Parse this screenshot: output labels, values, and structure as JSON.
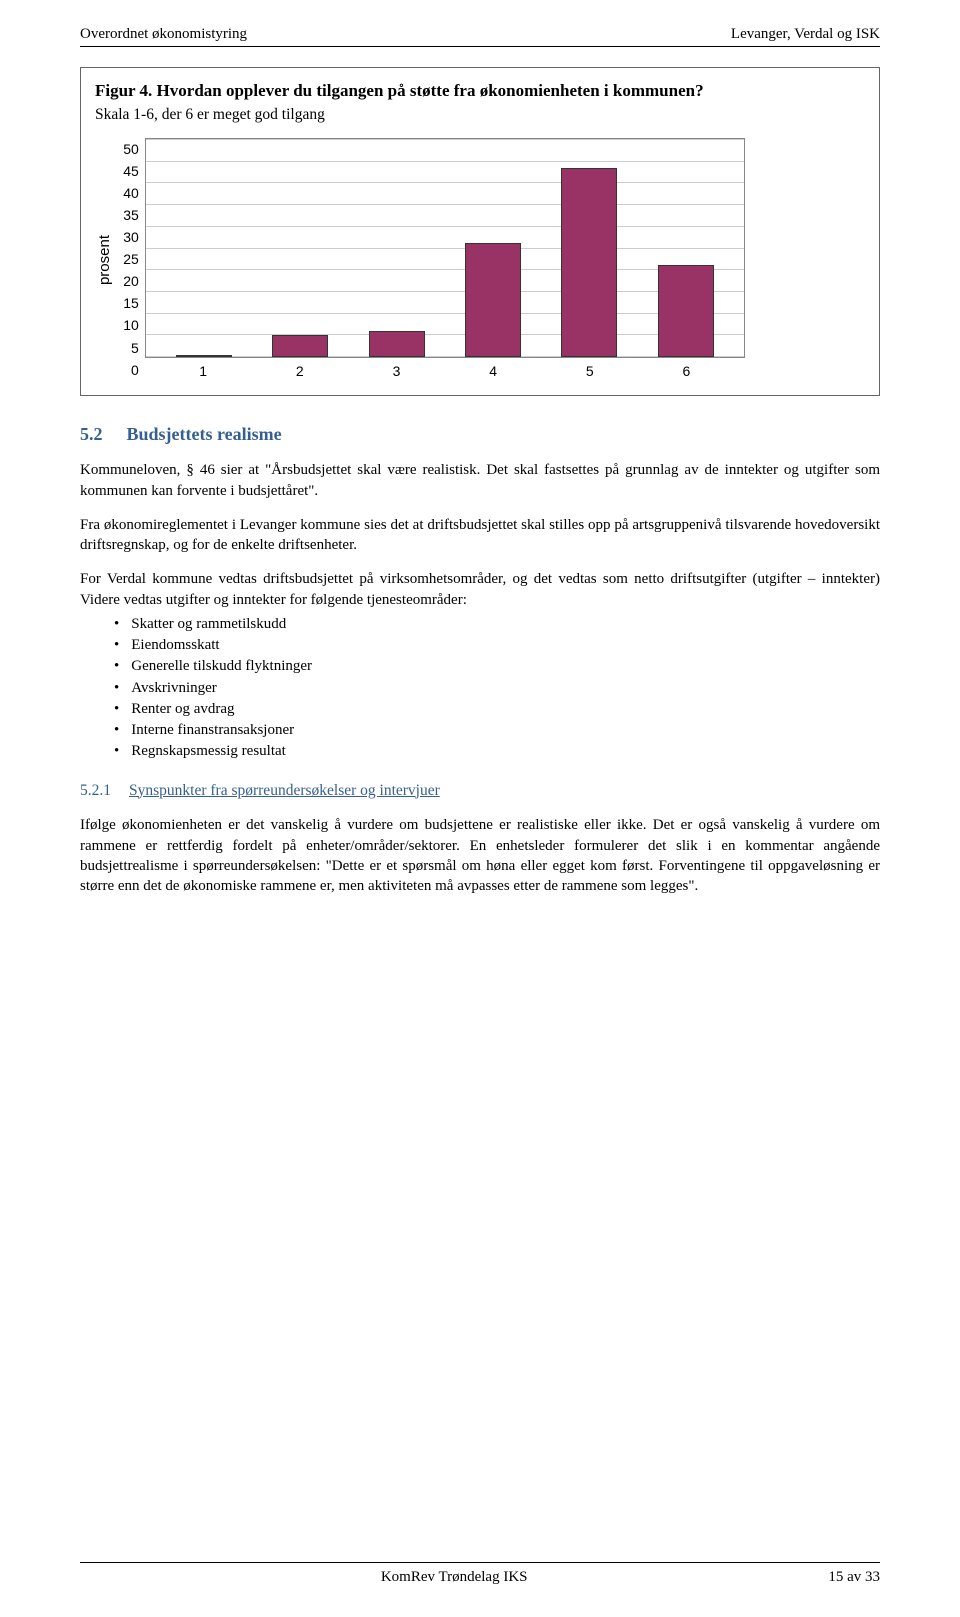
{
  "header": {
    "left": "Overordnet økonomistyring",
    "right": "Levanger, Verdal og ISK"
  },
  "chart": {
    "type": "bar",
    "title": "Figur 4. Hvordan opplever du tilgangen på støtte fra økonomienheten i kommunen?",
    "subtitle": "Skala 1-6, der 6 er meget god tilgang",
    "ylabel": "prosent",
    "yticks": [
      "50",
      "45",
      "40",
      "35",
      "30",
      "25",
      "20",
      "15",
      "10",
      "5",
      "0"
    ],
    "ylim_max": 50,
    "categories": [
      "1",
      "2",
      "3",
      "4",
      "5",
      "6"
    ],
    "values": [
      0,
      5,
      6,
      26,
      43,
      21
    ],
    "bar_color": "#993366",
    "grid_color": "#cccccc",
    "border_color": "#888888",
    "plot_bg": "#ffffff"
  },
  "section": {
    "number": "5.2",
    "title": "Budsjettets realisme",
    "p1": "Kommuneloven, § 46 sier at \"Årsbudsjettet skal være realistisk. Det skal fastsettes på grunnlag av de inntekter og utgifter som kommunen kan forvente i budsjettåret\".",
    "p2": "Fra økonomireglementet i Levanger kommune sies det at driftsbudsjettet skal stilles opp på artsgruppenivå tilsvarende hovedoversikt driftsregnskap, og for de enkelte driftsenheter.",
    "p3": "For Verdal kommune vedtas driftsbudsjettet på virksomhetsområder, og det vedtas som netto driftsutgifter (utgifter – inntekter) Videre vedtas utgifter og inntekter for følgende tjenesteområder:",
    "bullets": [
      "Skatter og rammetilskudd",
      "Eiendomsskatt",
      "Generelle tilskudd flyktninger",
      "Avskrivninger",
      "Renter og avdrag",
      "Interne finanstransaksjoner",
      "Regnskapsmessig resultat"
    ]
  },
  "subsection": {
    "number": "5.2.1",
    "title": "Synspunkter fra spørreundersøkelser og intervjuer",
    "p1": "Ifølge økonomienheten er det vanskelig å vurdere om budsjettene er realistiske eller ikke. Det er også vanskelig å vurdere om rammene er rettferdig fordelt på enheter/områder/sektorer. En enhetsleder formulerer det slik i en kommentar angående budsjettrealisme i spørreundersøkelsen: \"Dette er et spørsmål om høna eller egget kom først. Forventingene til oppgaveløsning er større enn det de økonomiske rammene er, men aktiviteten må avpasses etter de rammene som legges\"."
  },
  "footer": {
    "center": "KomRev Trøndelag IKS",
    "right": "15 av 33"
  }
}
